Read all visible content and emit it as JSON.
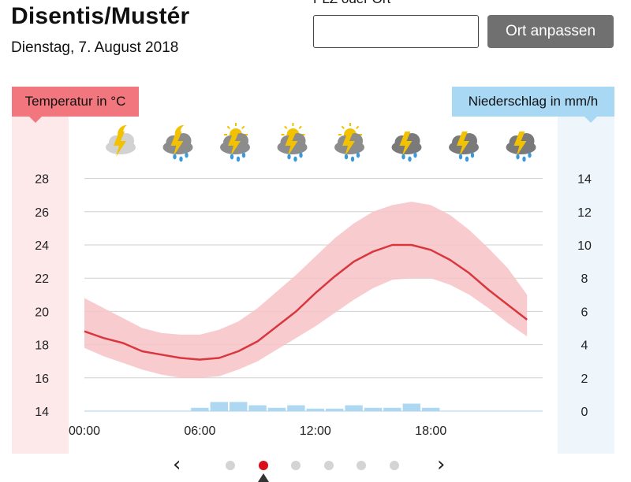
{
  "header": {
    "title": "Disentis/Mustér",
    "date": "Dienstag, 7. August 2018",
    "plz_label": "PLZ oder Ort",
    "plz_value": "",
    "button_label": "Ort anpassen"
  },
  "labels": {
    "temperature": "Temperatur in °C",
    "precipitation": "Niederschlag in mm/h"
  },
  "colors": {
    "temp_line": "#d9363e",
    "temp_band": "#f7c3c7",
    "precip_bar": "#aed8f2",
    "active_dot": "#d8101a"
  },
  "icons": [
    "night-thunder-cloud-icon",
    "night-thunder-rain-icon",
    "sun-thunder-rain-icon",
    "sun-thunder-rain-icon",
    "sun-thunder-rain-icon",
    "thunderstorm-rain-icon",
    "thunderstorm-rain-icon",
    "thunderstorm-rain-icon"
  ],
  "pager": {
    "dots": 6,
    "active_index": 1
  },
  "chart_data": {
    "type": "line",
    "x_ticks": [
      "00:00",
      "06:00",
      "12:00",
      "18:00"
    ],
    "left_axis": {
      "ticks": [
        28,
        26,
        24,
        22,
        20,
        18,
        16,
        14
      ],
      "ylim": [
        14,
        28
      ]
    },
    "right_axis": {
      "ticks": [
        14,
        12,
        10,
        8,
        6,
        4,
        2,
        0
      ],
      "ylim": [
        0,
        14
      ]
    },
    "grid": true,
    "hours": [
      0,
      1,
      2,
      3,
      4,
      5,
      6,
      7,
      8,
      9,
      10,
      11,
      12,
      13,
      14,
      15,
      16,
      17,
      18,
      19,
      20,
      21,
      22,
      23
    ],
    "temperature": [
      18.8,
      18.4,
      18.1,
      17.6,
      17.4,
      17.2,
      17.1,
      17.2,
      17.6,
      18.2,
      19.1,
      20.0,
      21.1,
      22.1,
      23.0,
      23.6,
      24.0,
      24.0,
      23.7,
      23.1,
      22.3,
      21.3,
      20.4,
      19.5
    ],
    "temperature_upper": [
      20.8,
      20.2,
      19.6,
      19.0,
      18.7,
      18.6,
      18.6,
      18.9,
      19.4,
      20.2,
      21.2,
      22.2,
      23.3,
      24.4,
      25.3,
      26.0,
      26.4,
      26.6,
      26.4,
      25.8,
      24.9,
      23.8,
      22.6,
      21.0
    ],
    "temperature_lower": [
      17.8,
      17.3,
      16.9,
      16.5,
      16.2,
      16.0,
      16.0,
      16.1,
      16.5,
      17.0,
      17.7,
      18.4,
      19.1,
      19.9,
      20.7,
      21.4,
      21.9,
      22.0,
      22.0,
      21.6,
      21.0,
      20.2,
      19.3,
      18.5
    ],
    "precipitation": [
      0,
      0,
      0,
      0,
      0,
      0,
      0.2,
      0.55,
      0.55,
      0.35,
      0.2,
      0.35,
      0.15,
      0.15,
      0.35,
      0.2,
      0.2,
      0.45,
      0.2,
      0,
      0,
      0,
      0,
      0
    ]
  }
}
